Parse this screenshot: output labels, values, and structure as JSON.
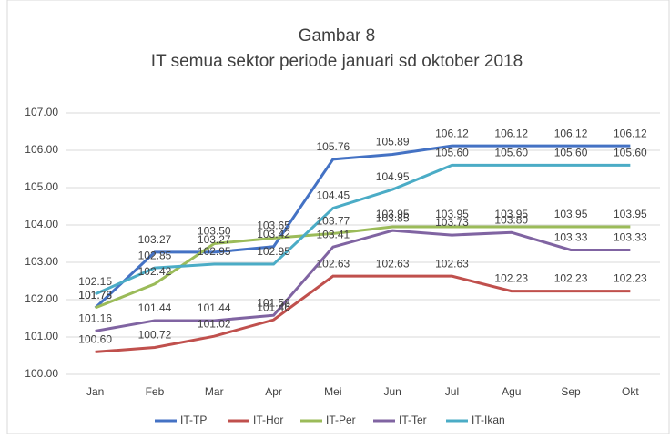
{
  "chart_data": {
    "type": "line",
    "title": "Gambar 8",
    "subtitle": "IT semua sektor  periode januari sd oktober 2018",
    "categories": [
      "Jan",
      "Feb",
      "Mar",
      "Apr",
      "Mei",
      "Jun",
      "Jul",
      "Agu",
      "Sep",
      "Okt"
    ],
    "ylim": [
      100,
      107
    ],
    "yticks": [
      {
        "value": 100,
        "label": "100.00"
      },
      {
        "value": 101,
        "label": "101.00"
      },
      {
        "value": 102,
        "label": "102.00"
      },
      {
        "value": 103,
        "label": "103.00"
      },
      {
        "value": 104,
        "label": "104.00"
      },
      {
        "value": 105,
        "label": "105.00"
      },
      {
        "value": 106,
        "label": "106.00"
      },
      {
        "value": 107,
        "label": "107.00"
      }
    ],
    "grid": true,
    "legend": "bottom",
    "series": [
      {
        "name": "IT-TP",
        "color": "#4472c4",
        "values": [
          101.78,
          103.27,
          103.27,
          103.42,
          105.76,
          105.89,
          106.12,
          106.12,
          106.12,
          106.12
        ],
        "value_labels": [
          "101.78",
          "103.27",
          "103.27",
          "103.42",
          "105.76",
          "105.89",
          "106.12",
          "106.12",
          "106.12",
          "106.12"
        ]
      },
      {
        "name": "IT-Hor",
        "color": "#c0504d",
        "values": [
          100.6,
          100.72,
          101.02,
          101.46,
          102.63,
          102.63,
          102.63,
          102.23,
          102.23,
          102.23
        ],
        "value_labels": [
          "100.60",
          "100.72",
          "101.02",
          "101.46",
          "102.63",
          "102.63",
          "102.63",
          "102.23",
          "102.23",
          "102.23"
        ]
      },
      {
        "name": "IT-Per",
        "color": "#9bbb59",
        "values": [
          101.78,
          102.42,
          103.5,
          103.65,
          103.77,
          103.95,
          103.95,
          103.95,
          103.95,
          103.95
        ],
        "value_labels": [
          "101.78",
          "102.42",
          "103.50",
          "103.65",
          "103.77",
          "103.95",
          "103.95",
          "103.95",
          "103.95",
          "103.95"
        ]
      },
      {
        "name": "IT-Ter",
        "color": "#8064a2",
        "values": [
          101.16,
          101.44,
          101.44,
          101.58,
          103.41,
          103.85,
          103.73,
          103.8,
          103.33,
          103.33
        ],
        "value_labels": [
          "101.16",
          "101.44",
          "101.44",
          "101.58",
          "103.41",
          "103.85",
          "103.73",
          "103.80",
          "103.33",
          "103.33"
        ]
      },
      {
        "name": "IT-Ikan",
        "color": "#4bacc6",
        "values": [
          102.15,
          102.85,
          102.95,
          102.95,
          104.45,
          104.95,
          105.6,
          105.6,
          105.6,
          105.6
        ],
        "value_labels": [
          "102.15",
          "102.85",
          "102.95",
          "102.95",
          "104.45",
          "104.95",
          "105.60",
          "105.60",
          "105.60",
          "105.60"
        ]
      }
    ]
  }
}
